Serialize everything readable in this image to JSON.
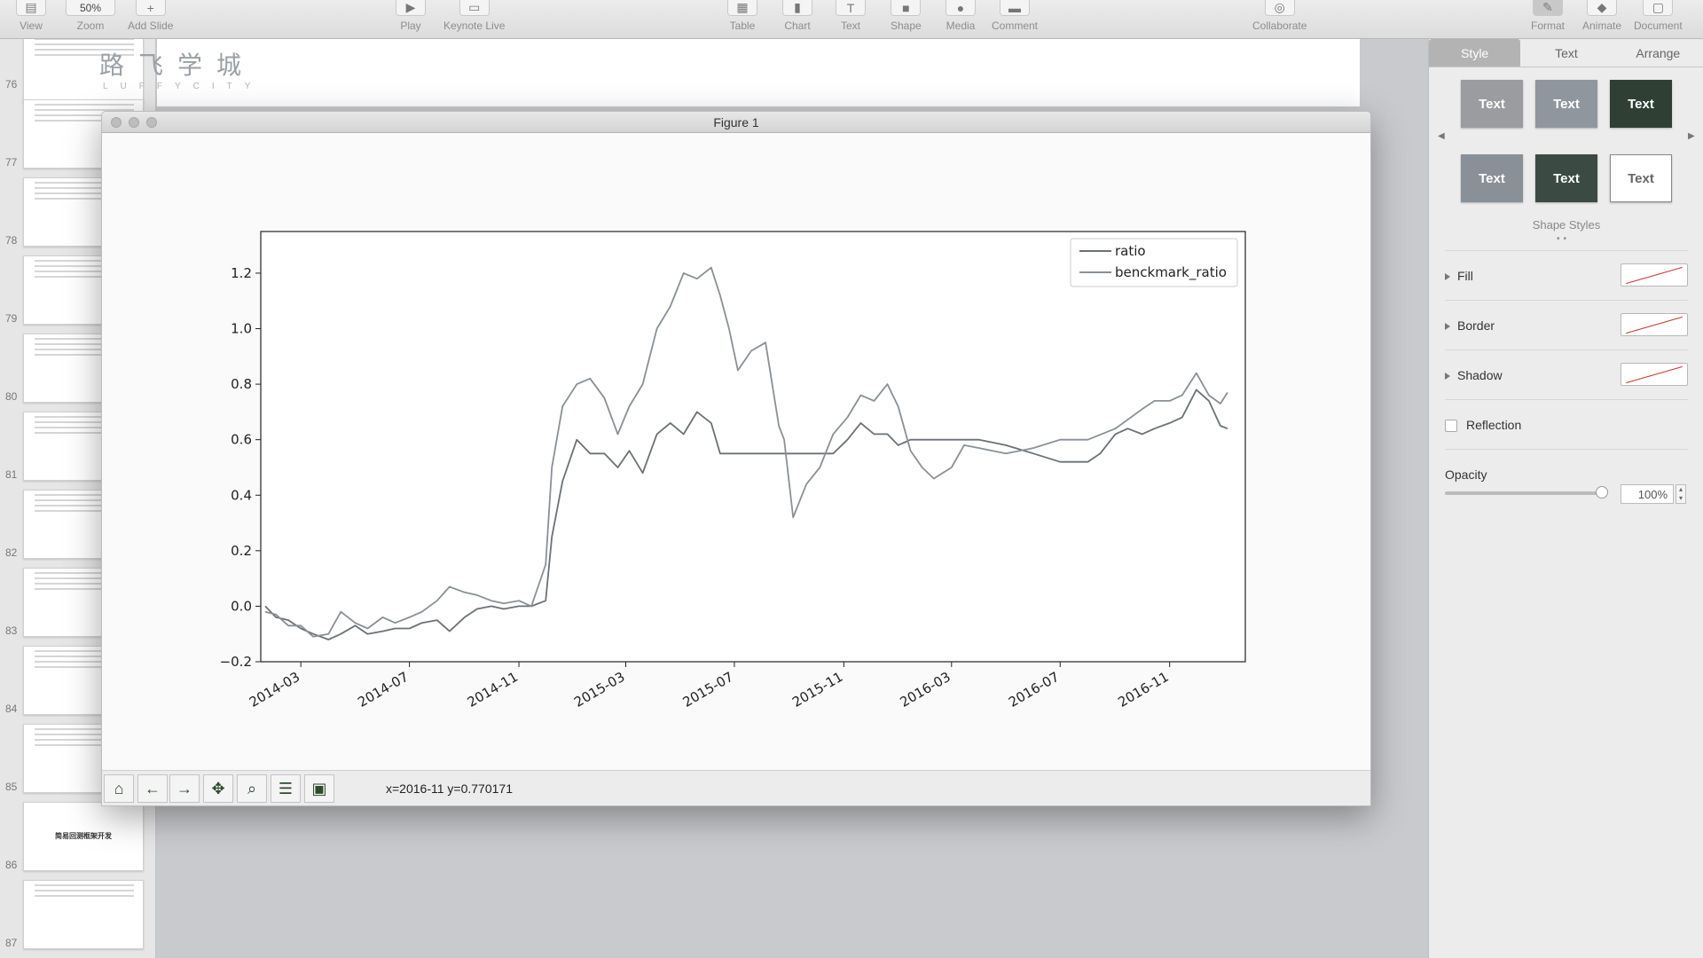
{
  "toolbar": {
    "view": "View",
    "zoom_value": "50%",
    "zoom": "Zoom",
    "add_slide": "Add Slide",
    "play": "Play",
    "keynote_live": "Keynote Live",
    "table": "Table",
    "chart": "Chart",
    "text": "Text",
    "shape": "Shape",
    "media": "Media",
    "comment": "Comment",
    "collaborate": "Collaborate",
    "format": "Format",
    "animate": "Animate",
    "document": "Document"
  },
  "navigator": {
    "slides": [
      {
        "num": "76"
      },
      {
        "num": "77"
      },
      {
        "num": "78"
      },
      {
        "num": "79"
      },
      {
        "num": "80"
      },
      {
        "num": "81"
      },
      {
        "num": "82"
      },
      {
        "num": "83"
      },
      {
        "num": "84"
      },
      {
        "num": "85"
      },
      {
        "num": "86",
        "title": "简易回测框架开发"
      },
      {
        "num": "87"
      }
    ]
  },
  "slide": {
    "brand_cn": "路飞学城",
    "brand_en": "LUFFYCITY"
  },
  "figure": {
    "title": "Figure 1",
    "coord_readout": "x=2016-11 y=0.770171"
  },
  "chart_data": {
    "type": "line",
    "title": "",
    "xlabel": "",
    "ylabel": "",
    "x_ticks": [
      "2014-03",
      "2014-07",
      "2014-11",
      "2015-03",
      "2015-07",
      "2015-11",
      "2016-03",
      "2016-07",
      "2016-11"
    ],
    "y_ticks": [
      "−0.2",
      "0.0",
      "0.2",
      "0.4",
      "0.6",
      "0.8",
      "1.0",
      "1.2"
    ],
    "ylim": [
      -0.2,
      1.35
    ],
    "xlim": [
      "2014-01-15",
      "2017-01-25"
    ],
    "legend_position": "top-right",
    "grid": false,
    "series": [
      {
        "name": "ratio",
        "color": "#6b7177",
        "points": [
          [
            "2014-01-20",
            0.0
          ],
          [
            "2014-02-01",
            -0.04
          ],
          [
            "2014-02-15",
            -0.05
          ],
          [
            "2014-03-01",
            -0.08
          ],
          [
            "2014-03-15",
            -0.1
          ],
          [
            "2014-04-01",
            -0.12
          ],
          [
            "2014-04-15",
            -0.1
          ],
          [
            "2014-05-01",
            -0.07
          ],
          [
            "2014-05-15",
            -0.1
          ],
          [
            "2014-06-01",
            -0.09
          ],
          [
            "2014-06-15",
            -0.08
          ],
          [
            "2014-07-01",
            -0.08
          ],
          [
            "2014-07-15",
            -0.06
          ],
          [
            "2014-08-01",
            -0.05
          ],
          [
            "2014-08-15",
            -0.09
          ],
          [
            "2014-09-01",
            -0.04
          ],
          [
            "2014-09-15",
            -0.01
          ],
          [
            "2014-10-01",
            0.0
          ],
          [
            "2014-10-15",
            -0.01
          ],
          [
            "2014-11-01",
            0.0
          ],
          [
            "2014-11-15",
            0.0
          ],
          [
            "2014-12-01",
            0.02
          ],
          [
            "2014-12-08",
            0.25
          ],
          [
            "2014-12-20",
            0.45
          ],
          [
            "2015-01-05",
            0.6
          ],
          [
            "2015-01-20",
            0.55
          ],
          [
            "2015-02-05",
            0.55
          ],
          [
            "2015-02-20",
            0.5
          ],
          [
            "2015-03-05",
            0.56
          ],
          [
            "2015-03-20",
            0.48
          ],
          [
            "2015-04-05",
            0.62
          ],
          [
            "2015-04-20",
            0.66
          ],
          [
            "2015-05-05",
            0.62
          ],
          [
            "2015-05-20",
            0.7
          ],
          [
            "2015-06-05",
            0.66
          ],
          [
            "2015-06-15",
            0.55
          ],
          [
            "2015-07-01",
            0.55
          ],
          [
            "2015-08-01",
            0.55
          ],
          [
            "2015-09-01",
            0.55
          ],
          [
            "2015-10-01",
            0.55
          ],
          [
            "2015-10-20",
            0.55
          ],
          [
            "2015-11-05",
            0.6
          ],
          [
            "2015-11-20",
            0.66
          ],
          [
            "2015-12-05",
            0.62
          ],
          [
            "2015-12-20",
            0.62
          ],
          [
            "2016-01-01",
            0.58
          ],
          [
            "2016-01-15",
            0.6
          ],
          [
            "2016-02-01",
            0.6
          ],
          [
            "2016-03-01",
            0.6
          ],
          [
            "2016-04-01",
            0.6
          ],
          [
            "2016-05-01",
            0.58
          ],
          [
            "2016-06-01",
            0.55
          ],
          [
            "2016-07-01",
            0.52
          ],
          [
            "2016-08-01",
            0.52
          ],
          [
            "2016-08-15",
            0.55
          ],
          [
            "2016-09-01",
            0.62
          ],
          [
            "2016-09-15",
            0.64
          ],
          [
            "2016-10-01",
            0.62
          ],
          [
            "2016-10-15",
            0.64
          ],
          [
            "2016-11-01",
            0.66
          ],
          [
            "2016-11-15",
            0.68
          ],
          [
            "2016-12-01",
            0.78
          ],
          [
            "2016-12-15",
            0.74
          ],
          [
            "2016-12-28",
            0.65
          ],
          [
            "2017-01-05",
            0.64
          ]
        ]
      },
      {
        "name": "benckmark_ratio",
        "color": "#8a9096",
        "points": [
          [
            "2014-01-20",
            -0.02
          ],
          [
            "2014-02-01",
            -0.03
          ],
          [
            "2014-02-15",
            -0.07
          ],
          [
            "2014-03-01",
            -0.07
          ],
          [
            "2014-03-15",
            -0.11
          ],
          [
            "2014-04-01",
            -0.1
          ],
          [
            "2014-04-15",
            -0.02
          ],
          [
            "2014-05-01",
            -0.06
          ],
          [
            "2014-05-15",
            -0.08
          ],
          [
            "2014-06-01",
            -0.04
          ],
          [
            "2014-06-15",
            -0.06
          ],
          [
            "2014-07-01",
            -0.04
          ],
          [
            "2014-07-15",
            -0.02
          ],
          [
            "2014-08-01",
            0.02
          ],
          [
            "2014-08-15",
            0.07
          ],
          [
            "2014-09-01",
            0.05
          ],
          [
            "2014-09-15",
            0.04
          ],
          [
            "2014-10-01",
            0.02
          ],
          [
            "2014-10-15",
            0.01
          ],
          [
            "2014-11-01",
            0.02
          ],
          [
            "2014-11-15",
            0.0
          ],
          [
            "2014-12-01",
            0.15
          ],
          [
            "2014-12-08",
            0.5
          ],
          [
            "2014-12-20",
            0.72
          ],
          [
            "2015-01-05",
            0.8
          ],
          [
            "2015-01-20",
            0.82
          ],
          [
            "2015-02-05",
            0.75
          ],
          [
            "2015-02-20",
            0.62
          ],
          [
            "2015-03-05",
            0.72
          ],
          [
            "2015-03-20",
            0.8
          ],
          [
            "2015-04-05",
            1.0
          ],
          [
            "2015-04-20",
            1.08
          ],
          [
            "2015-05-05",
            1.2
          ],
          [
            "2015-05-20",
            1.18
          ],
          [
            "2015-06-05",
            1.22
          ],
          [
            "2015-06-15",
            1.12
          ],
          [
            "2015-06-25",
            1.0
          ],
          [
            "2015-07-05",
            0.85
          ],
          [
            "2015-07-20",
            0.92
          ],
          [
            "2015-08-05",
            0.95
          ],
          [
            "2015-08-20",
            0.65
          ],
          [
            "2015-08-26",
            0.6
          ],
          [
            "2015-09-05",
            0.32
          ],
          [
            "2015-09-20",
            0.44
          ],
          [
            "2015-10-05",
            0.5
          ],
          [
            "2015-10-20",
            0.62
          ],
          [
            "2015-11-05",
            0.68
          ],
          [
            "2015-11-20",
            0.76
          ],
          [
            "2015-12-05",
            0.74
          ],
          [
            "2015-12-20",
            0.8
          ],
          [
            "2016-01-01",
            0.72
          ],
          [
            "2016-01-15",
            0.56
          ],
          [
            "2016-01-28",
            0.5
          ],
          [
            "2016-02-10",
            0.46
          ],
          [
            "2016-03-01",
            0.5
          ],
          [
            "2016-03-15",
            0.58
          ],
          [
            "2016-04-01",
            0.57
          ],
          [
            "2016-05-01",
            0.55
          ],
          [
            "2016-06-01",
            0.57
          ],
          [
            "2016-07-01",
            0.6
          ],
          [
            "2016-08-01",
            0.6
          ],
          [
            "2016-09-01",
            0.64
          ],
          [
            "2016-10-01",
            0.71
          ],
          [
            "2016-10-15",
            0.74
          ],
          [
            "2016-11-01",
            0.74
          ],
          [
            "2016-11-15",
            0.76
          ],
          [
            "2016-12-01",
            0.84
          ],
          [
            "2016-12-15",
            0.76
          ],
          [
            "2016-12-28",
            0.73
          ],
          [
            "2017-01-05",
            0.77
          ]
        ]
      }
    ]
  },
  "inspector": {
    "tabs": [
      "Style",
      "Text",
      "Arrange"
    ],
    "style_tiles": [
      "Text",
      "Text",
      "Text",
      "Text",
      "Text",
      "Text"
    ],
    "shape_styles": "Shape Styles",
    "fill": "Fill",
    "border": "Border",
    "shadow": "Shadow",
    "reflection": "Reflection",
    "opacity": "Opacity",
    "opacity_value": "100%"
  }
}
